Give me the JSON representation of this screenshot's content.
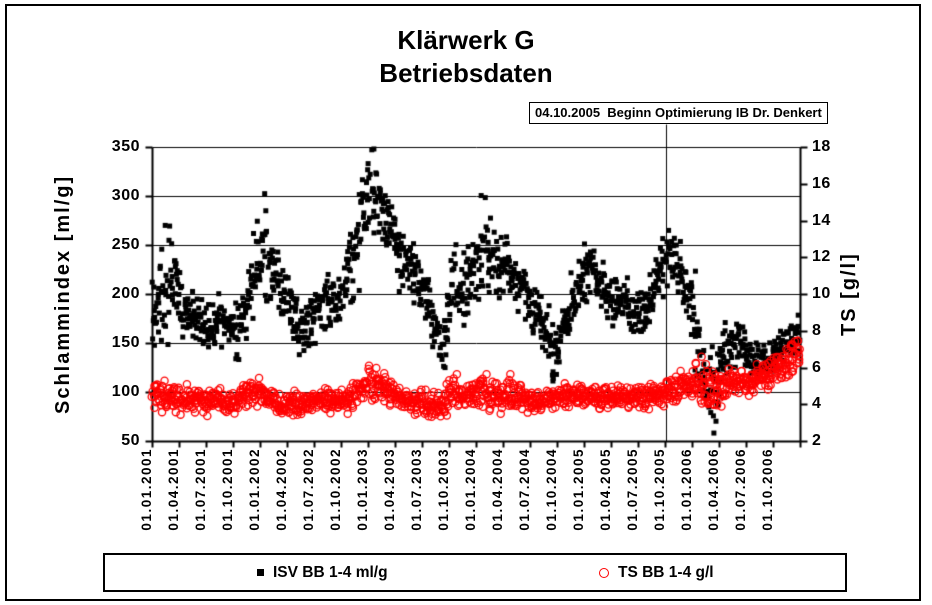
{
  "window": {
    "background": "#FFFFFF",
    "border_color": "#000000"
  },
  "title": {
    "line1": "Klärwerk G",
    "line2": "Betriebsdaten"
  },
  "annotation": {
    "text": "04.10.2005  Beginn Optimierung IB Dr. Denkert"
  },
  "legend": {
    "entries": [
      {
        "label": "ISV BB 1-4 ml/g",
        "marker": "filled-square",
        "color": "#000000"
      },
      {
        "label": "TS BB 1-4 g/l",
        "marker": "open-circle",
        "color": "#FF0000"
      }
    ]
  },
  "chart_data": {
    "type": "scatter",
    "title": "Klärwerk G Betriebsdaten",
    "grid": "horizontal",
    "legend_position": "bottom",
    "x_axis": {
      "start": "01.01.2001",
      "end": "31.12.2006",
      "tick_labels": [
        "01.01.2001",
        "01.04.2001",
        "01.07.2001",
        "01.10.2001",
        "01.01.2002",
        "01.04.2002",
        "01.07.2002",
        "01.10.2002",
        "01.01.2003",
        "01.04.2003",
        "01.07.2003",
        "01.10.2003",
        "01.01.2004",
        "01.04.2004",
        "01.07.2004",
        "01.10.2004",
        "01.01.2005",
        "01.04.2005",
        "01.07.2005",
        "01.10.2005",
        "01.01.2006",
        "01.04.2006",
        "01.07.2006",
        "01.10.2006"
      ]
    },
    "y_left": {
      "label": "Schlammindex [ml/g]",
      "min": 50,
      "max": 350,
      "step": 50,
      "tick_labels": [
        "350",
        "300",
        "250",
        "200",
        "150",
        "100",
        "50"
      ]
    },
    "y_right": {
      "label": "TS [g/l]",
      "min": 2,
      "max": 18,
      "step": 2,
      "tick_labels": [
        "18",
        "16",
        "14",
        "12",
        "10",
        "8",
        "6",
        "4",
        "2"
      ]
    },
    "annotation_line": {
      "date": "04.10.2005",
      "month_index": 57.1,
      "text": "04.10.2005  Beginn Optimierung IB Dr. Denkert"
    },
    "months_count": 72,
    "points_per_series": 1460,
    "random_seed": 20051004,
    "series": [
      {
        "name": "ISV BB 1-4 ml/g",
        "axis": "left",
        "color": "#000000",
        "marker": "filled-square",
        "value_clamp": [
          55,
          348
        ],
        "monthly_mean": [
          185,
          220,
          205,
          185,
          175,
          170,
          165,
          175,
          165,
          160,
          190,
          225,
          250,
          230,
          200,
          180,
          160,
          170,
          185,
          195,
          190,
          205,
          240,
          285,
          310,
          290,
          260,
          240,
          230,
          215,
          195,
          165,
          150,
          230,
          195,
          220,
          250,
          240,
          225,
          235,
          210,
          200,
          180,
          170,
          135,
          160,
          185,
          210,
          225,
          215,
          200,
          190,
          195,
          185,
          180,
          195,
          225,
          240,
          230,
          205,
          160,
          115,
          100,
          135,
          150,
          155,
          135,
          130,
          135,
          140,
          150,
          155
        ],
        "monthly_sigma": [
          20,
          28,
          18,
          14,
          12,
          11,
          11,
          12,
          11,
          12,
          16,
          20,
          25,
          18,
          16,
          14,
          12,
          12,
          12,
          12,
          12,
          14,
          20,
          25,
          20,
          18,
          16,
          14,
          13,
          14,
          14,
          13,
          12,
          25,
          16,
          16,
          20,
          16,
          14,
          14,
          13,
          12,
          12,
          12,
          14,
          14,
          14,
          14,
          14,
          13,
          12,
          12,
          12,
          12,
          12,
          13,
          14,
          14,
          13,
          16,
          26,
          22,
          20,
          13,
          11,
          11,
          11,
          10,
          10,
          10,
          9,
          9
        ]
      },
      {
        "name": "TS BB 1-4 g/l",
        "axis": "right",
        "color": "#FF0000",
        "marker": "open-circle",
        "value_clamp": [
          2.55,
          8.3
        ],
        "monthly_mean": [
          4.6,
          4.5,
          4.4,
          4.4,
          4.3,
          4.2,
          4.1,
          4.3,
          4.0,
          4.2,
          4.5,
          4.8,
          4.6,
          4.2,
          3.9,
          4.1,
          4.0,
          4.2,
          4.3,
          4.2,
          4.1,
          4.3,
          4.5,
          4.9,
          5.2,
          5.0,
          4.6,
          4.4,
          4.2,
          4.2,
          4.0,
          3.9,
          3.9,
          4.8,
          4.4,
          4.5,
          4.8,
          4.5,
          4.4,
          4.7,
          4.5,
          4.3,
          4.2,
          4.1,
          4.3,
          4.5,
          4.4,
          4.5,
          4.5,
          4.4,
          4.3,
          4.4,
          4.5,
          4.4,
          4.3,
          4.5,
          4.6,
          4.8,
          5.0,
          5.0,
          5.2,
          5.0,
          4.8,
          5.0,
          5.2,
          5.3,
          5.2,
          5.4,
          5.6,
          6.0,
          6.3,
          6.6
        ],
        "monthly_sigma": [
          0.45,
          0.4,
          0.35,
          0.35,
          0.3,
          0.3,
          0.3,
          0.3,
          0.3,
          0.3,
          0.35,
          0.4,
          0.35,
          0.3,
          0.3,
          0.3,
          0.3,
          0.3,
          0.3,
          0.3,
          0.3,
          0.3,
          0.35,
          0.4,
          0.45,
          0.4,
          0.35,
          0.3,
          0.3,
          0.35,
          0.35,
          0.35,
          0.35,
          0.45,
          0.35,
          0.35,
          0.4,
          0.4,
          0.35,
          0.4,
          0.35,
          0.3,
          0.3,
          0.3,
          0.3,
          0.3,
          0.3,
          0.3,
          0.3,
          0.3,
          0.3,
          0.3,
          0.3,
          0.3,
          0.3,
          0.3,
          0.35,
          0.4,
          0.4,
          0.45,
          0.6,
          0.65,
          0.55,
          0.45,
          0.4,
          0.4,
          0.4,
          0.4,
          0.4,
          0.45,
          0.45,
          0.5
        ]
      }
    ]
  }
}
